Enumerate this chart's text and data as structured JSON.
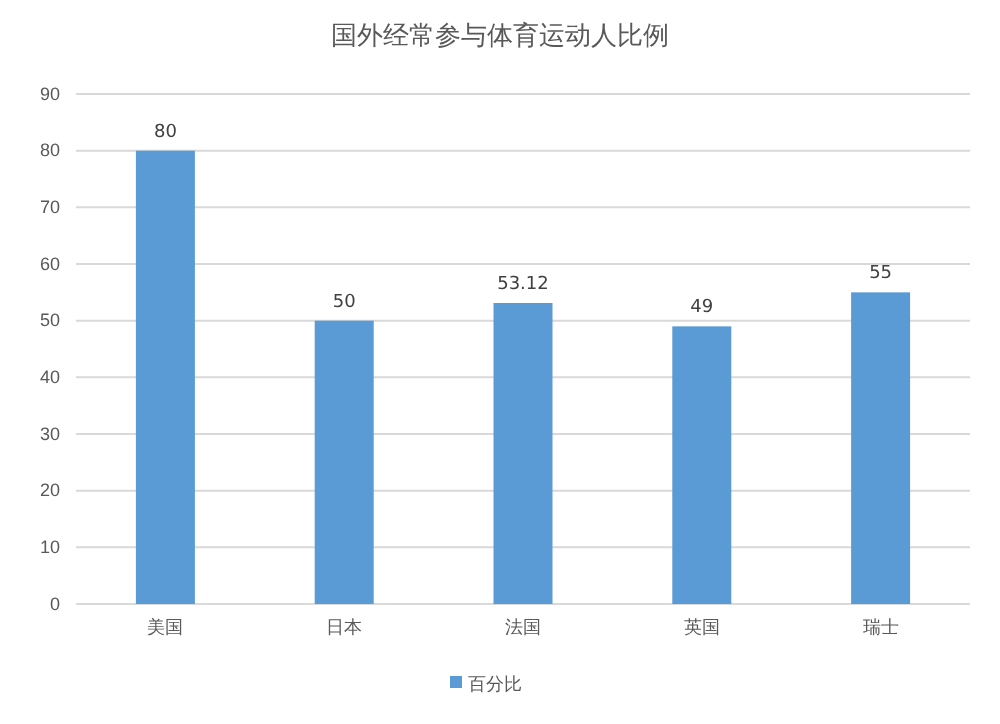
{
  "chart_data": {
    "type": "bar",
    "title": "国外经常参与体育运动人比例",
    "categories": [
      "美国",
      "日本",
      "法国",
      "英国",
      "瑞士"
    ],
    "series": [
      {
        "name": "百分比",
        "color": "#5b9bd5",
        "values": [
          80,
          50,
          53.12,
          49,
          55
        ]
      }
    ],
    "ylim": [
      0,
      90
    ],
    "yticks": [
      0,
      10,
      20,
      30,
      40,
      50,
      60,
      70,
      80,
      90
    ],
    "grid": "y",
    "legend": "bottom",
    "data_labels": true
  }
}
